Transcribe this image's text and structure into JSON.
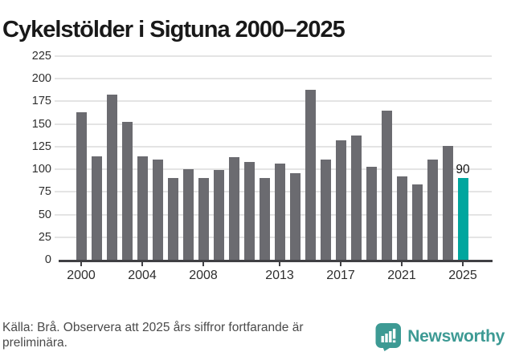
{
  "title": "Cykelstölder i Sigtuna 2000–2025",
  "chart_data": {
    "type": "bar",
    "title": "Cykelstölder i Sigtuna 2000–2025",
    "year_start": 2000,
    "categories": [
      2000,
      2001,
      2002,
      2003,
      2004,
      2005,
      2006,
      2007,
      2008,
      2009,
      2010,
      2011,
      2012,
      2013,
      2014,
      2015,
      2016,
      2017,
      2018,
      2019,
      2020,
      2021,
      2022,
      2023,
      2024,
      2025
    ],
    "values": [
      163,
      114,
      182,
      152,
      114,
      111,
      90,
      100,
      90,
      99,
      113,
      108,
      90,
      106,
      96,
      188,
      111,
      132,
      137,
      103,
      165,
      92,
      83,
      111,
      126,
      90
    ],
    "highlight_index": 25,
    "annotation": {
      "text": "90",
      "year": 2025
    },
    "y_ticks": [
      0,
      25,
      50,
      75,
      100,
      125,
      150,
      175,
      200,
      225
    ],
    "ylim": [
      0,
      225
    ],
    "x_tick_labels": [
      "2000",
      "2004",
      "2008",
      "2013",
      "2017",
      "2021",
      "2025"
    ],
    "grid": true,
    "legend": "none",
    "bar_color": "#6b6b70",
    "highlight_color": "#00a69e",
    "xlabel": "",
    "ylabel": ""
  },
  "footer": {
    "source_note": "Källa: Brå. Observera att 2025 års siffror fortfarande är preliminära."
  },
  "branding": {
    "logo_text": "Newsworthy",
    "logo_icon": "speech-bubble-bar-chart-icon",
    "logo_color": "#3d9a94"
  }
}
